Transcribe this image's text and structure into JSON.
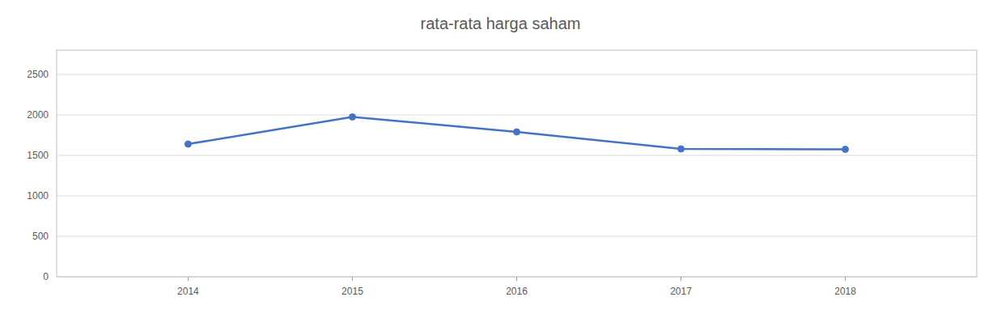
{
  "chart_data": {
    "type": "line",
    "title": "rata-rata harga saham",
    "x": [
      2014,
      2015,
      2016,
      2017,
      2018
    ],
    "values": [
      1640,
      1975,
      1790,
      1580,
      1575
    ],
    "color": "#4472C4",
    "marker": "circle",
    "xlim": [
      2013.2,
      2018.8
    ],
    "xticks": [
      2014,
      2015,
      2016,
      2017,
      2018
    ],
    "ylim": [
      0,
      2800
    ],
    "yticks": [
      0,
      500,
      1000,
      1500,
      2000,
      2500
    ],
    "grid": true
  }
}
